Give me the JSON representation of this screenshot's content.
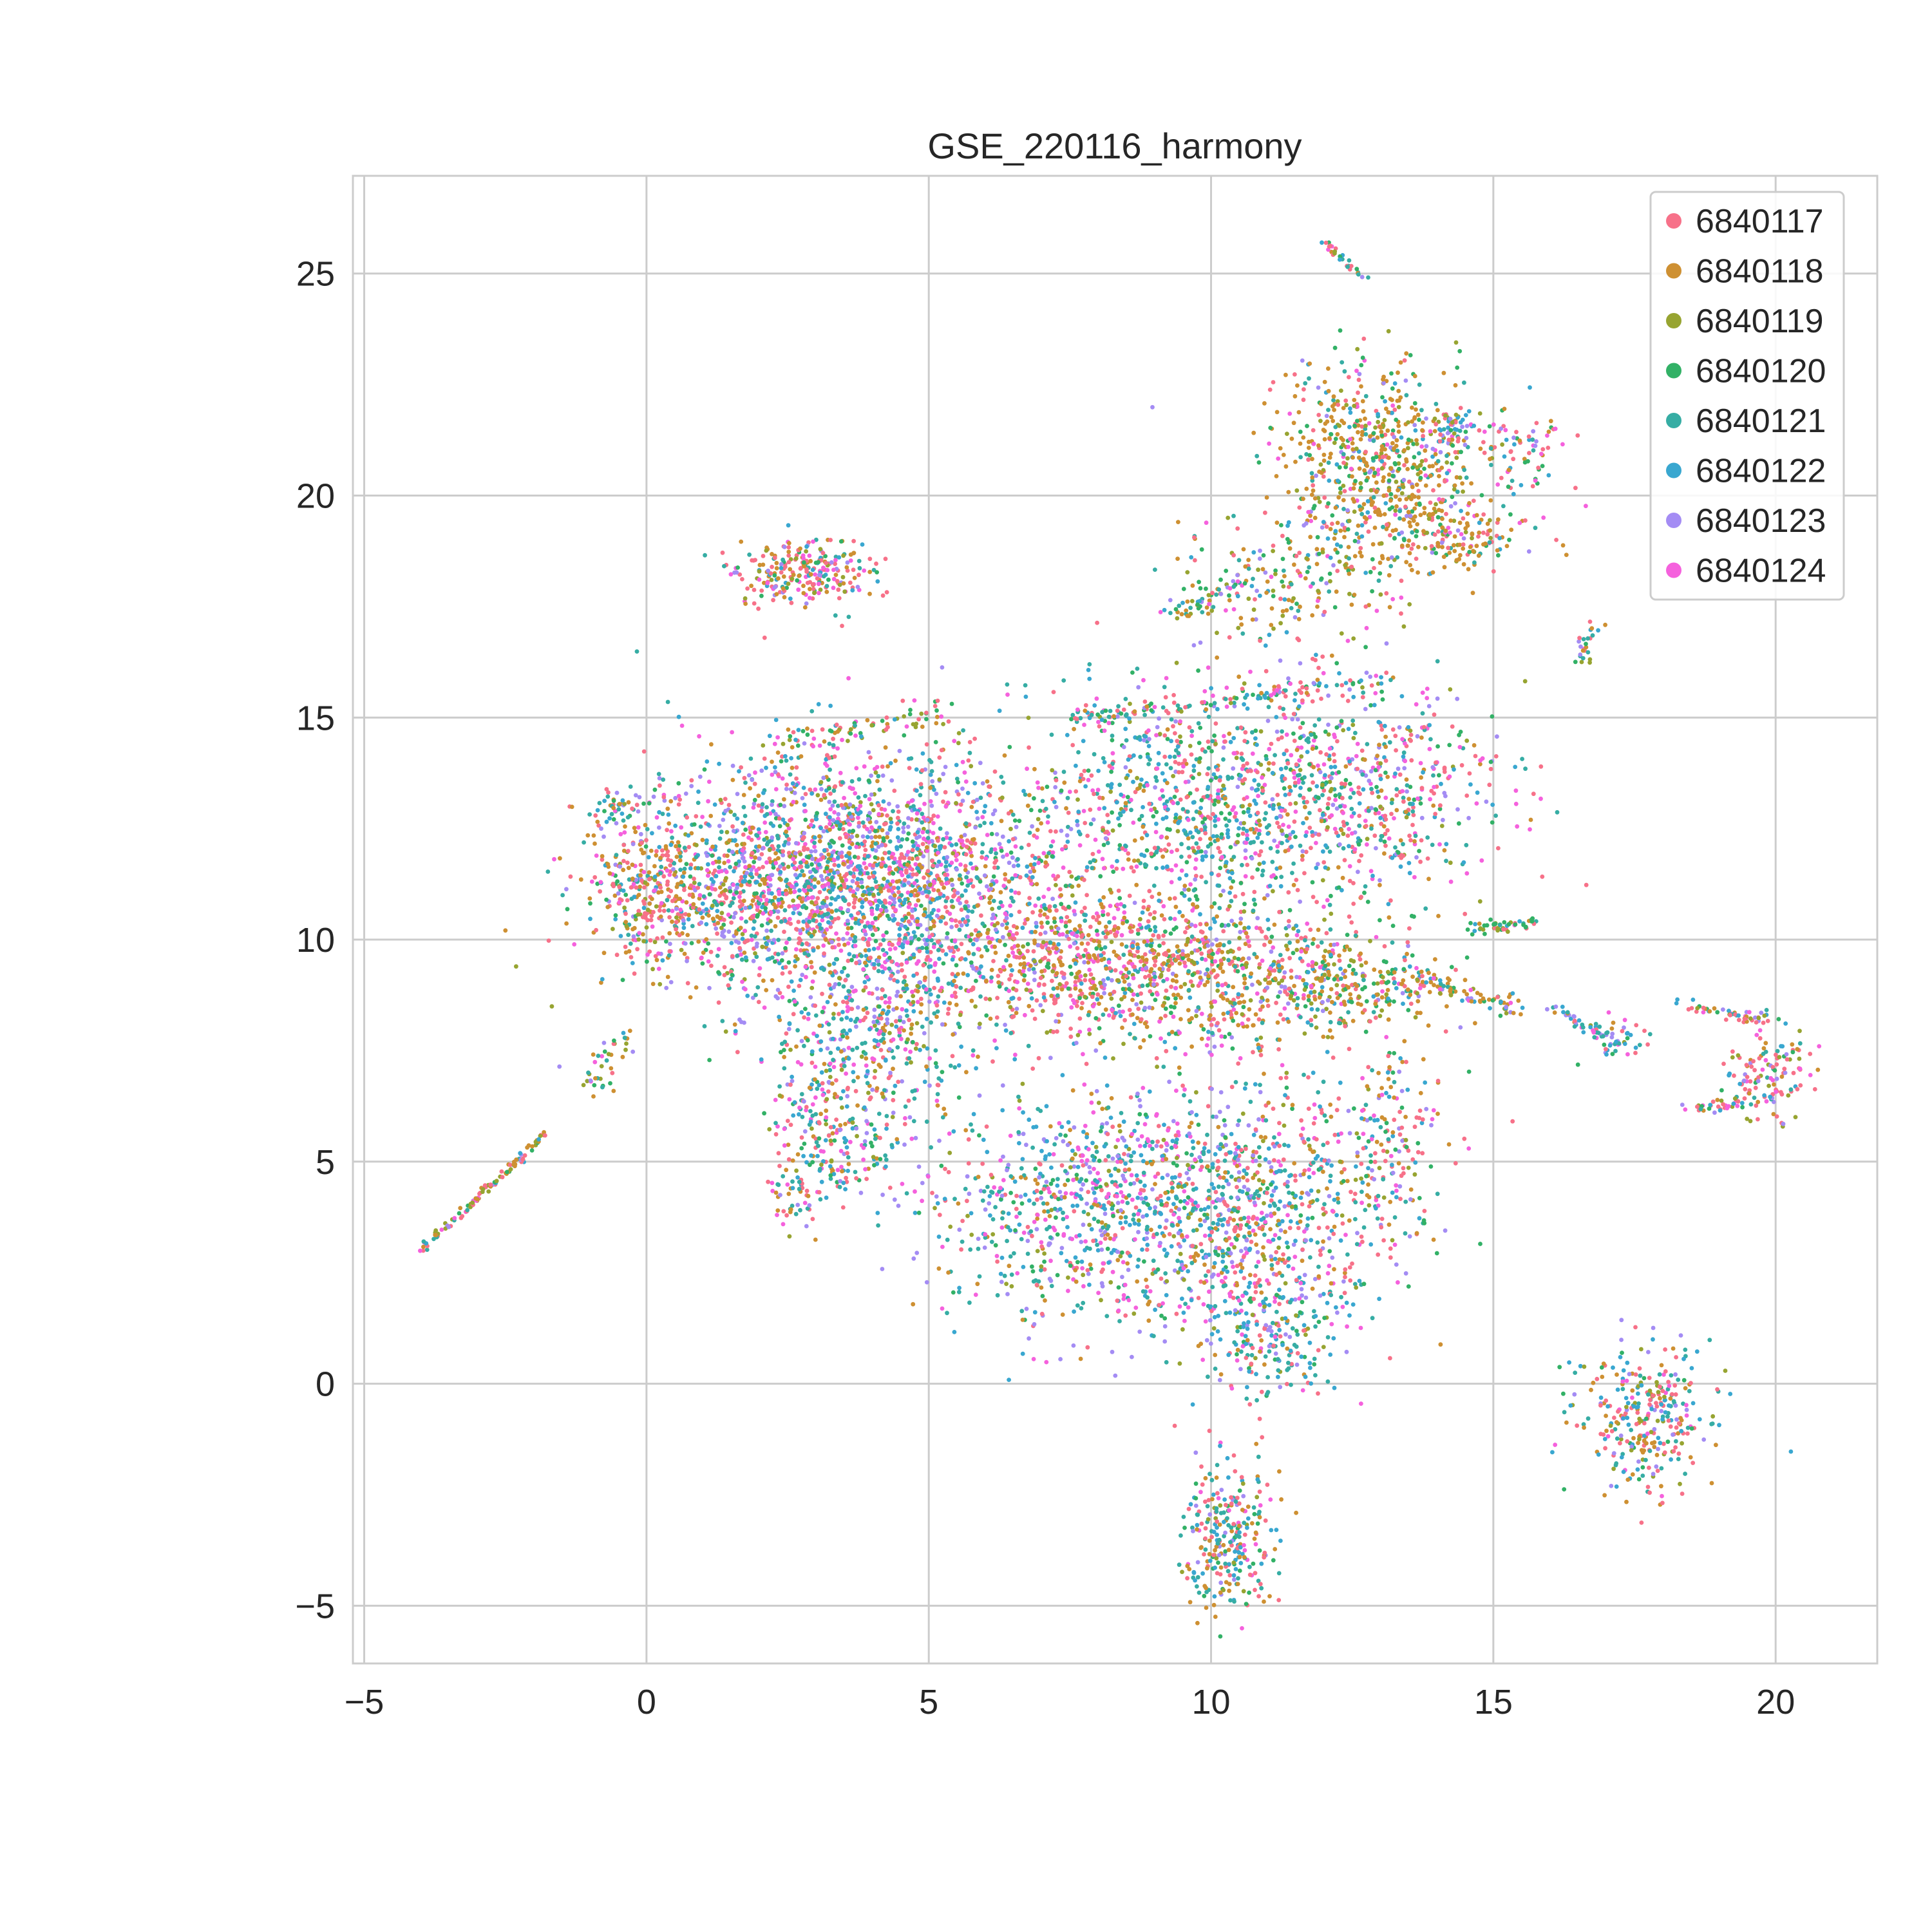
{
  "chart_data": {
    "type": "scatter",
    "title": "GSE_220116_harmony",
    "xlabel": "",
    "ylabel": "",
    "xlim": [
      -5.2,
      21.8
    ],
    "ylim": [
      -6.3,
      27.2
    ],
    "xticks": [
      -5,
      0,
      5,
      10,
      15,
      20
    ],
    "yticks": [
      -5,
      0,
      5,
      10,
      15,
      20,
      25
    ],
    "grid": true,
    "legend_position": "top-right",
    "series": [
      {
        "name": "6840117",
        "color": "#f77189"
      },
      {
        "name": "6840118",
        "color": "#ce9032"
      },
      {
        "name": "6840119",
        "color": "#97a431"
      },
      {
        "name": "6840120",
        "color": "#32b166"
      },
      {
        "name": "6840121",
        "color": "#36ada4"
      },
      {
        "name": "6840122",
        "color": "#39a7d0"
      },
      {
        "name": "6840123",
        "color": "#a48cf4"
      },
      {
        "name": "6840124",
        "color": "#f561dd"
      }
    ],
    "clusters": [
      {
        "cx": 3.0,
        "cy": 11.5,
        "sx": 1.6,
        "sy": 1.4,
        "n": 1400,
        "w": [
          3,
          2,
          1,
          1,
          3,
          3,
          3,
          3
        ]
      },
      {
        "cx": 1.5,
        "cy": 11.0,
        "sx": 1.4,
        "sy": 0.9,
        "n": 420,
        "w": [
          3,
          3,
          1,
          1,
          1,
          1,
          1,
          1
        ]
      },
      {
        "cx": 0.0,
        "cy": 11.0,
        "sx": 0.5,
        "sy": 0.8,
        "n": 200,
        "w": [
          3,
          4,
          1,
          1,
          1,
          1,
          1,
          1
        ]
      },
      {
        "cx": -0.5,
        "cy": 13.0,
        "sx": 0.2,
        "sy": 0.2,
        "n": 40,
        "w": [
          1,
          1,
          1,
          1,
          3,
          3,
          1,
          1
        ]
      },
      {
        "cx": 5.0,
        "cy": 11.5,
        "sx": 1.3,
        "sy": 1.2,
        "n": 700,
        "w": [
          3,
          2,
          1,
          1,
          2,
          3,
          3,
          3
        ]
      },
      {
        "cx": 4.0,
        "cy": 8.0,
        "sx": 0.9,
        "sy": 1.4,
        "n": 500,
        "w": [
          2,
          2,
          1,
          1,
          3,
          3,
          2,
          2
        ]
      },
      {
        "cx": 3.2,
        "cy": 5.5,
        "sx": 0.5,
        "sy": 0.8,
        "n": 170,
        "w": [
          3,
          2,
          1,
          1,
          2,
          2,
          1,
          2
        ]
      },
      {
        "cx": 2.6,
        "cy": 4.2,
        "sx": 0.2,
        "sy": 0.3,
        "n": 40,
        "w": [
          3,
          2,
          1,
          1,
          2,
          2,
          1,
          1
        ]
      },
      {
        "cx": 7.5,
        "cy": 9.5,
        "sx": 1.4,
        "sy": 0.9,
        "n": 650,
        "w": [
          4,
          3,
          1,
          1,
          1,
          1,
          1,
          2
        ]
      },
      {
        "cx": 10.0,
        "cy": 9.2,
        "sx": 1.3,
        "sy": 0.8,
        "n": 600,
        "w": [
          3,
          4,
          2,
          2,
          1,
          1,
          1,
          1
        ]
      },
      {
        "cx": 12.5,
        "cy": 9.0,
        "sx": 1.0,
        "sy": 0.5,
        "n": 250,
        "w": [
          2,
          4,
          2,
          2,
          1,
          1,
          1,
          1
        ]
      },
      {
        "cx": 9.5,
        "cy": 13.0,
        "sx": 1.5,
        "sy": 1.3,
        "n": 800,
        "w": [
          3,
          1,
          1,
          2,
          3,
          3,
          1,
          2
        ]
      },
      {
        "cx": 12.5,
        "cy": 13.3,
        "sx": 1.3,
        "sy": 1.2,
        "n": 650,
        "w": [
          4,
          1,
          1,
          1,
          2,
          2,
          1,
          2
        ]
      },
      {
        "cx": 8.0,
        "cy": 4.0,
        "sx": 1.5,
        "sy": 1.3,
        "n": 900,
        "w": [
          2,
          1,
          1,
          1,
          3,
          3,
          3,
          2
        ]
      },
      {
        "cx": 10.8,
        "cy": 4.0,
        "sx": 1.2,
        "sy": 1.5,
        "n": 750,
        "w": [
          3,
          2,
          1,
          1,
          3,
          3,
          2,
          2
        ]
      },
      {
        "cx": 11.0,
        "cy": 1.0,
        "sx": 0.6,
        "sy": 0.8,
        "n": 200,
        "w": [
          2,
          1,
          1,
          1,
          3,
          3,
          1,
          1
        ]
      },
      {
        "cx": 13.0,
        "cy": 5.5,
        "sx": 0.6,
        "sy": 1.0,
        "n": 180,
        "w": [
          4,
          2,
          1,
          1,
          1,
          1,
          1,
          1
        ]
      },
      {
        "cx": 12.8,
        "cy": 21.3,
        "sx": 0.8,
        "sy": 0.9,
        "n": 380,
        "w": [
          2,
          6,
          2,
          2,
          1,
          1,
          1,
          1
        ]
      },
      {
        "cx": 13.5,
        "cy": 19.7,
        "sx": 1.0,
        "sy": 1.0,
        "n": 400,
        "w": [
          2,
          6,
          1,
          2,
          1,
          1,
          1,
          1
        ]
      },
      {
        "cx": 11.3,
        "cy": 18.0,
        "sx": 0.9,
        "sy": 0.8,
        "n": 200,
        "w": [
          2,
          3,
          2,
          3,
          1,
          1,
          1,
          1
        ]
      },
      {
        "cx": 14.3,
        "cy": 21.5,
        "sx": 0.3,
        "sy": 0.3,
        "n": 60,
        "w": [
          1,
          1,
          1,
          1,
          1,
          3,
          3,
          1
        ]
      },
      {
        "cx": 15.5,
        "cy": 21.0,
        "sx": 0.4,
        "sy": 0.4,
        "n": 60,
        "w": [
          5,
          1,
          1,
          1,
          1,
          1,
          1,
          2
        ]
      },
      {
        "cx": 14.5,
        "cy": 19.0,
        "sx": 0.4,
        "sy": 0.3,
        "n": 60,
        "w": [
          1,
          5,
          1,
          1,
          1,
          1,
          1,
          1
        ]
      },
      {
        "cx": 2.8,
        "cy": 18.3,
        "sx": 0.6,
        "sy": 0.4,
        "n": 260,
        "w": [
          5,
          3,
          1,
          1,
          1,
          1,
          1,
          2
        ]
      },
      {
        "cx": 10.3,
        "cy": -3.5,
        "sx": 0.4,
        "sy": 0.8,
        "n": 280,
        "w": [
          3,
          3,
          1,
          1,
          2,
          2,
          1,
          1
        ]
      },
      {
        "cx": 17.7,
        "cy": -0.8,
        "sx": 0.6,
        "sy": 0.8,
        "n": 320,
        "w": [
          3,
          3,
          1,
          1,
          2,
          2,
          1,
          1
        ]
      },
      {
        "cx": 19.9,
        "cy": 7.0,
        "sx": 0.4,
        "sy": 0.5,
        "n": 120,
        "w": [
          5,
          1,
          1,
          1,
          1,
          1,
          1,
          2
        ]
      },
      {
        "cx": 17.2,
        "cy": 7.8,
        "sx": 0.3,
        "sy": 0.3,
        "n": 40,
        "w": [
          1,
          1,
          1,
          1,
          2,
          3,
          3,
          1
        ]
      }
    ],
    "strands": [
      {
        "from": [
          -4.0,
          3.0
        ],
        "to": [
          -1.8,
          5.6
        ],
        "n": 110,
        "spread": 0.04,
        "w": [
          5,
          4,
          2,
          1,
          1,
          1,
          1,
          1
        ]
      },
      {
        "from": [
          -1.0,
          6.7
        ],
        "to": [
          -0.4,
          7.8
        ],
        "n": 40,
        "spread": 0.15,
        "w": [
          1,
          2,
          3,
          4,
          1,
          1,
          1,
          1
        ]
      },
      {
        "from": [
          2.2,
          14.3
        ],
        "to": [
          5.2,
          15.2
        ],
        "n": 80,
        "spread": 0.15,
        "w": [
          3,
          2,
          2,
          3,
          1,
          1,
          1,
          1
        ]
      },
      {
        "from": [
          7.5,
          15.0
        ],
        "to": [
          13.2,
          15.8
        ],
        "n": 140,
        "spread": 0.12,
        "w": [
          3,
          1,
          1,
          2,
          3,
          2,
          1,
          1
        ]
      },
      {
        "from": [
          13.5,
          9.2
        ],
        "to": [
          15.5,
          8.4
        ],
        "n": 70,
        "spread": 0.1,
        "w": [
          1,
          6,
          1,
          1,
          1,
          1,
          1,
          1
        ]
      },
      {
        "from": [
          14.5,
          10.2
        ],
        "to": [
          15.8,
          10.4
        ],
        "n": 50,
        "spread": 0.07,
        "w": [
          1,
          2,
          3,
          4,
          2,
          1,
          1,
          1
        ]
      },
      {
        "from": [
          16.0,
          8.5
        ],
        "to": [
          17.2,
          7.7
        ],
        "n": 45,
        "spread": 0.07,
        "w": [
          1,
          1,
          1,
          1,
          2,
          3,
          3,
          1
        ]
      },
      {
        "from": [
          18.3,
          8.5
        ],
        "to": [
          19.8,
          8.2
        ],
        "n": 50,
        "spread": 0.07,
        "w": [
          5,
          2,
          1,
          1,
          1,
          1,
          1,
          1
        ]
      },
      {
        "from": [
          18.4,
          6.2
        ],
        "to": [
          19.8,
          6.4
        ],
        "n": 40,
        "spread": 0.08,
        "w": [
          5,
          2,
          1,
          1,
          1,
          1,
          1,
          1
        ]
      },
      {
        "from": [
          12.0,
          25.7
        ],
        "to": [
          12.7,
          24.9
        ],
        "n": 30,
        "spread": 0.04,
        "w": [
          3,
          2,
          1,
          1,
          3,
          3,
          1,
          1
        ]
      },
      {
        "from": [
          16.5,
          16.2
        ],
        "to": [
          16.8,
          17.2
        ],
        "n": 25,
        "spread": 0.06,
        "w": [
          2,
          1,
          1,
          1,
          3,
          3,
          2,
          1
        ]
      },
      {
        "from": [
          9.3,
          17.3
        ],
        "to": [
          10.6,
          18.1
        ],
        "n": 45,
        "spread": 0.1,
        "w": [
          1,
          3,
          1,
          3,
          2,
          1,
          1,
          1
        ]
      }
    ]
  }
}
